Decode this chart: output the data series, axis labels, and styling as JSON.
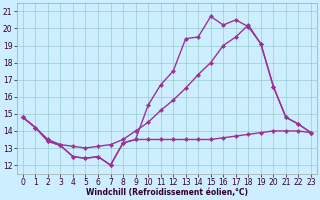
{
  "title": "",
  "xlabel": "Windchill (Refroidissement éolien,°C)",
  "ylabel": "",
  "background_color": "#cceeff",
  "grid_color": "#99cccc",
  "line_color": "#993399",
  "xlim": [
    -0.5,
    23.5
  ],
  "ylim": [
    11.5,
    21.5
  ],
  "yticks": [
    12,
    13,
    14,
    15,
    16,
    17,
    18,
    19,
    20,
    21
  ],
  "xticks": [
    0,
    1,
    2,
    3,
    4,
    5,
    6,
    7,
    8,
    9,
    10,
    11,
    12,
    13,
    14,
    15,
    16,
    17,
    18,
    19,
    20,
    21,
    22,
    23
  ],
  "line1_x": [
    0,
    1,
    2,
    3,
    4,
    5,
    6,
    7,
    8,
    9,
    10,
    11,
    12,
    13,
    14,
    15,
    16,
    17,
    18,
    19,
    20,
    21,
    22,
    23
  ],
  "line1_y": [
    14.8,
    14.2,
    13.4,
    13.15,
    12.5,
    12.4,
    12.5,
    12.0,
    13.3,
    13.5,
    13.5,
    13.5,
    13.5,
    13.5,
    13.5,
    13.5,
    13.6,
    13.7,
    13.8,
    13.9,
    14.0,
    14.0,
    14.0,
    13.9
  ],
  "line2_x": [
    0,
    1,
    2,
    3,
    4,
    5,
    6,
    7,
    8,
    9,
    10,
    11,
    12,
    13,
    14,
    15,
    16,
    17,
    18,
    19,
    20,
    21,
    22,
    23
  ],
  "line2_y": [
    14.8,
    14.2,
    13.4,
    13.15,
    12.5,
    12.4,
    12.5,
    12.0,
    13.3,
    13.5,
    15.5,
    16.7,
    17.5,
    19.4,
    19.5,
    20.7,
    20.2,
    20.5,
    20.1,
    19.1,
    16.6,
    14.8,
    14.4,
    13.9
  ],
  "line3_x": [
    0,
    1,
    2,
    3,
    4,
    5,
    6,
    7,
    8,
    9,
    10,
    11,
    12,
    13,
    14,
    15,
    16,
    17,
    18,
    19,
    20,
    21,
    22,
    23
  ],
  "line3_y": [
    14.8,
    14.2,
    13.5,
    13.2,
    13.1,
    13.0,
    13.1,
    13.2,
    13.5,
    14.0,
    14.5,
    15.2,
    15.8,
    16.5,
    17.3,
    18.0,
    19.0,
    19.5,
    20.2,
    19.1,
    16.6,
    14.8,
    14.4,
    13.9
  ],
  "marker_size": 2.5,
  "line_width": 1.0,
  "xlabel_fontsize": 5.5,
  "tick_fontsize": 5.5
}
